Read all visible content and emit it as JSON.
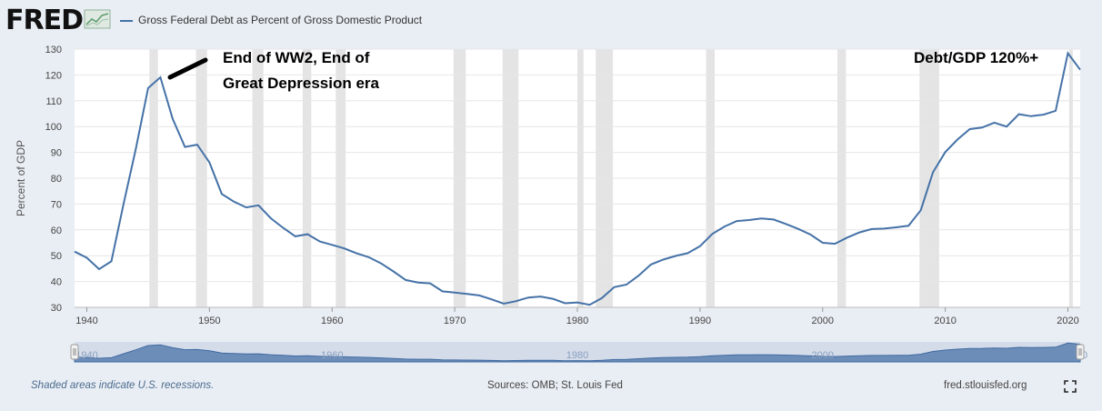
{
  "header": {
    "logo": "FRED",
    "series_title": "Gross Federal Debt as Percent of Gross Domestic Product"
  },
  "footer": {
    "note": "Shaded areas indicate U.S. recessions.",
    "sources": "Sources: OMB; St. Louis Fed",
    "site": "fred.stlouisfed.org"
  },
  "icons": {
    "logo_mark": "chart-line-icon",
    "fullscreen": "fullscreen-icon"
  },
  "colors": {
    "line": "#4572a7",
    "recession": "#e4e4e4",
    "annotation": "#000000",
    "navigator_fill": "#5b7fb0"
  },
  "chart_data": {
    "type": "line",
    "title": "Gross Federal Debt as Percent of Gross Domestic Product",
    "ylabel": "Percent of GDP",
    "xlabel": "",
    "xlim": [
      1939,
      2021
    ],
    "ylim": [
      30,
      130
    ],
    "yticks": [
      30,
      40,
      50,
      60,
      70,
      80,
      90,
      100,
      110,
      120,
      130
    ],
    "xticks": [
      1940,
      1950,
      1960,
      1970,
      1980,
      1990,
      2000,
      2010,
      2020
    ],
    "grid": true,
    "legend_position": "top-left",
    "series": [
      {
        "name": "Gross Federal Debt as Percent of Gross Domestic Product",
        "x": [
          1939,
          1940,
          1941,
          1942,
          1943,
          1944,
          1945,
          1946,
          1947,
          1948,
          1949,
          1950,
          1951,
          1952,
          1953,
          1954,
          1955,
          1956,
          1957,
          1958,
          1959,
          1960,
          1961,
          1962,
          1963,
          1964,
          1965,
          1966,
          1967,
          1968,
          1969,
          1970,
          1971,
          1972,
          1973,
          1974,
          1975,
          1976,
          1977,
          1978,
          1979,
          1980,
          1981,
          1982,
          1983,
          1984,
          1985,
          1986,
          1987,
          1988,
          1989,
          1990,
          1991,
          1992,
          1993,
          1994,
          1995,
          1996,
          1997,
          1998,
          1999,
          2000,
          2001,
          2002,
          2003,
          2004,
          2005,
          2006,
          2007,
          2008,
          2009,
          2010,
          2011,
          2012,
          2013,
          2014,
          2015,
          2016,
          2017,
          2018,
          2019,
          2020,
          2021
        ],
        "y": [
          51.6,
          49.2,
          44.8,
          47.8,
          70.2,
          91.4,
          114.9,
          119.1,
          103.0,
          92.1,
          93.0,
          86.1,
          73.9,
          70.9,
          68.7,
          69.5,
          64.5,
          60.8,
          57.5,
          58.3,
          55.5,
          54.2,
          52.8,
          50.9,
          49.4,
          47.0,
          43.9,
          40.6,
          39.6,
          39.3,
          36.2,
          35.7,
          35.2,
          34.6,
          33.1,
          31.4,
          32.4,
          33.8,
          34.2,
          33.3,
          31.6,
          31.9,
          31.0,
          33.6,
          37.8,
          38.8,
          42.3,
          46.6,
          48.5,
          49.9,
          51.0,
          53.7,
          58.4,
          61.3,
          63.4,
          63.8,
          64.4,
          64.0,
          62.3,
          60.4,
          58.2,
          55.0,
          54.6,
          57.0,
          59.0,
          60.3,
          60.5,
          61.0,
          61.6,
          67.6,
          82.3,
          90.1,
          95.0,
          99.0,
          99.6,
          101.5,
          100.0,
          104.8,
          104.0,
          104.6,
          106.1,
          128.4,
          122.0
        ]
      }
    ],
    "recessions": [
      [
        1945.1,
        1945.8
      ],
      [
        1948.9,
        1949.8
      ],
      [
        1953.5,
        1954.4
      ],
      [
        1957.6,
        1958.3
      ],
      [
        1960.3,
        1961.1
      ],
      [
        1969.9,
        1970.9
      ],
      [
        1973.9,
        1975.2
      ],
      [
        1980.0,
        1980.5
      ],
      [
        1981.5,
        1982.9
      ],
      [
        1990.5,
        1991.2
      ],
      [
        2001.2,
        2001.9
      ],
      [
        2007.9,
        2009.5
      ],
      [
        2020.1,
        2020.4
      ]
    ],
    "annotations": [
      {
        "lines": [
          "End of WW2, End of",
          "Great Depression era"
        ]
      },
      {
        "lines": [
          "Debt/GDP 120%+"
        ]
      }
    ],
    "navigator": {
      "x_labels": [
        "1940",
        "1960",
        "1980",
        "2000",
        "20"
      ]
    }
  }
}
